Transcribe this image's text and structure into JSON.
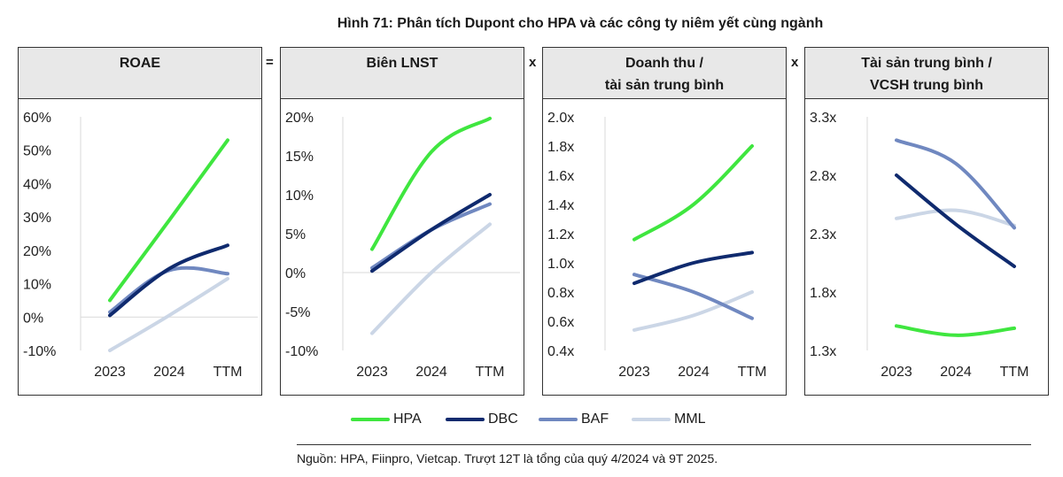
{
  "title": "Hình 71: Phân tích Dupont cho HPA và các công ty niêm yết cùng ngành",
  "operators": [
    "=",
    "x",
    "x"
  ],
  "source": "Nguồn: HPA, Fiinpro, Vietcap. Trượt 12T là tổng của quý 4/2024 và 9T 2025.",
  "colors": {
    "HPA": "#3fe63f",
    "DBC": "#0f2a6e",
    "BAF": "#7088c0",
    "MML": "#cbd6e6"
  },
  "legend": [
    "HPA",
    "DBC",
    "BAF",
    "MML"
  ],
  "chart_data": [
    {
      "type": "line",
      "title": "ROAE",
      "categories": [
        "2023",
        "2024",
        "TTM"
      ],
      "yticks": [
        "60%",
        "50%",
        "40%",
        "30%",
        "20%",
        "10%",
        "0%",
        "-10%"
      ],
      "ylim": [
        -10,
        60
      ],
      "zero_line": 0,
      "series": [
        {
          "name": "HPA",
          "values": [
            5,
            29,
            53
          ]
        },
        {
          "name": "DBC",
          "values": [
            0.5,
            14.5,
            21.5
          ]
        },
        {
          "name": "BAF",
          "values": [
            1.5,
            14,
            13
          ]
        },
        {
          "name": "MML",
          "values": [
            -10,
            0.5,
            11.5
          ]
        }
      ]
    },
    {
      "type": "line",
      "title": "Biên LNST",
      "categories": [
        "2023",
        "2024",
        "TTM"
      ],
      "yticks": [
        "20%",
        "15%",
        "10%",
        "5%",
        "0%",
        "-5%",
        "-10%"
      ],
      "ylim": [
        -10,
        20
      ],
      "zero_line": 0,
      "series": [
        {
          "name": "HPA",
          "values": [
            3,
            15.5,
            19.8
          ]
        },
        {
          "name": "DBC",
          "values": [
            0.2,
            5.5,
            10
          ]
        },
        {
          "name": "BAF",
          "values": [
            0.6,
            5.5,
            8.8
          ]
        },
        {
          "name": "MML",
          "values": [
            -7.8,
            0,
            6.2
          ]
        }
      ]
    },
    {
      "type": "line",
      "title": "Doanh thu /\ntài sản trung bình",
      "categories": [
        "2023",
        "2024",
        "TTM"
      ],
      "yticks": [
        "2.0x",
        "1.8x",
        "1.6x",
        "1.4x",
        "1.2x",
        "1.0x",
        "0.8x",
        "0.6x",
        "0.4x"
      ],
      "ylim": [
        0.4,
        2.0
      ],
      "series": [
        {
          "name": "HPA",
          "values": [
            1.16,
            1.4,
            1.8
          ]
        },
        {
          "name": "DBC",
          "values": [
            0.86,
            1.0,
            1.07
          ]
        },
        {
          "name": "BAF",
          "values": [
            0.92,
            0.8,
            0.62
          ]
        },
        {
          "name": "MML",
          "values": [
            0.54,
            0.64,
            0.8
          ]
        }
      ]
    },
    {
      "type": "line",
      "title": "Tài sản trung bình /\nVCSH trung bình",
      "categories": [
        "2023",
        "2024",
        "TTM"
      ],
      "yticks": [
        "3.3x",
        "2.8x",
        "2.3x",
        "1.8x",
        "1.3x"
      ],
      "ylim": [
        1.3,
        3.3
      ],
      "series": [
        {
          "name": "HPA",
          "values": [
            1.51,
            1.43,
            1.49
          ]
        },
        {
          "name": "DBC",
          "values": [
            2.8,
            2.38,
            2.02
          ]
        },
        {
          "name": "BAF",
          "values": [
            3.1,
            2.9,
            2.35
          ]
        },
        {
          "name": "MML",
          "values": [
            2.43,
            2.5,
            2.37
          ]
        }
      ]
    }
  ]
}
